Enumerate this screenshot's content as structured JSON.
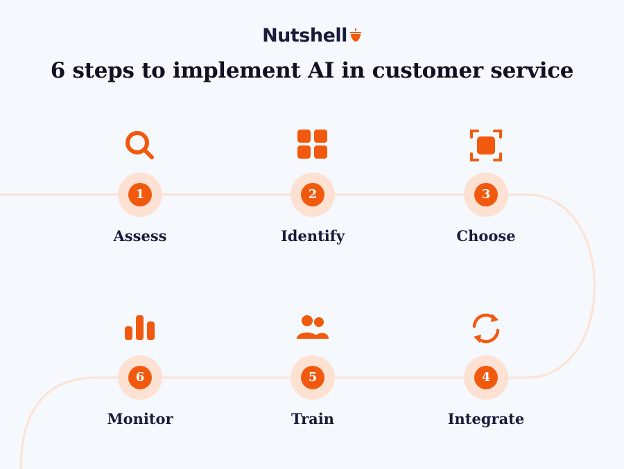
{
  "brand": {
    "name": "Nutshell",
    "logo_icon": "acorn-icon",
    "accent": "#f15a0e"
  },
  "title": "6 steps to implement AI in customer service",
  "steps": [
    {
      "number": "1",
      "label": "Assess",
      "icon": "search-icon"
    },
    {
      "number": "2",
      "label": "Identify",
      "icon": "grid-icon"
    },
    {
      "number": "3",
      "label": "Choose",
      "icon": "focus-frame-icon"
    },
    {
      "number": "4",
      "label": "Integrate",
      "icon": "sync-icon"
    },
    {
      "number": "5",
      "label": "Train",
      "icon": "users-icon"
    },
    {
      "number": "6",
      "label": "Monitor",
      "icon": "bar-chart-icon"
    }
  ]
}
